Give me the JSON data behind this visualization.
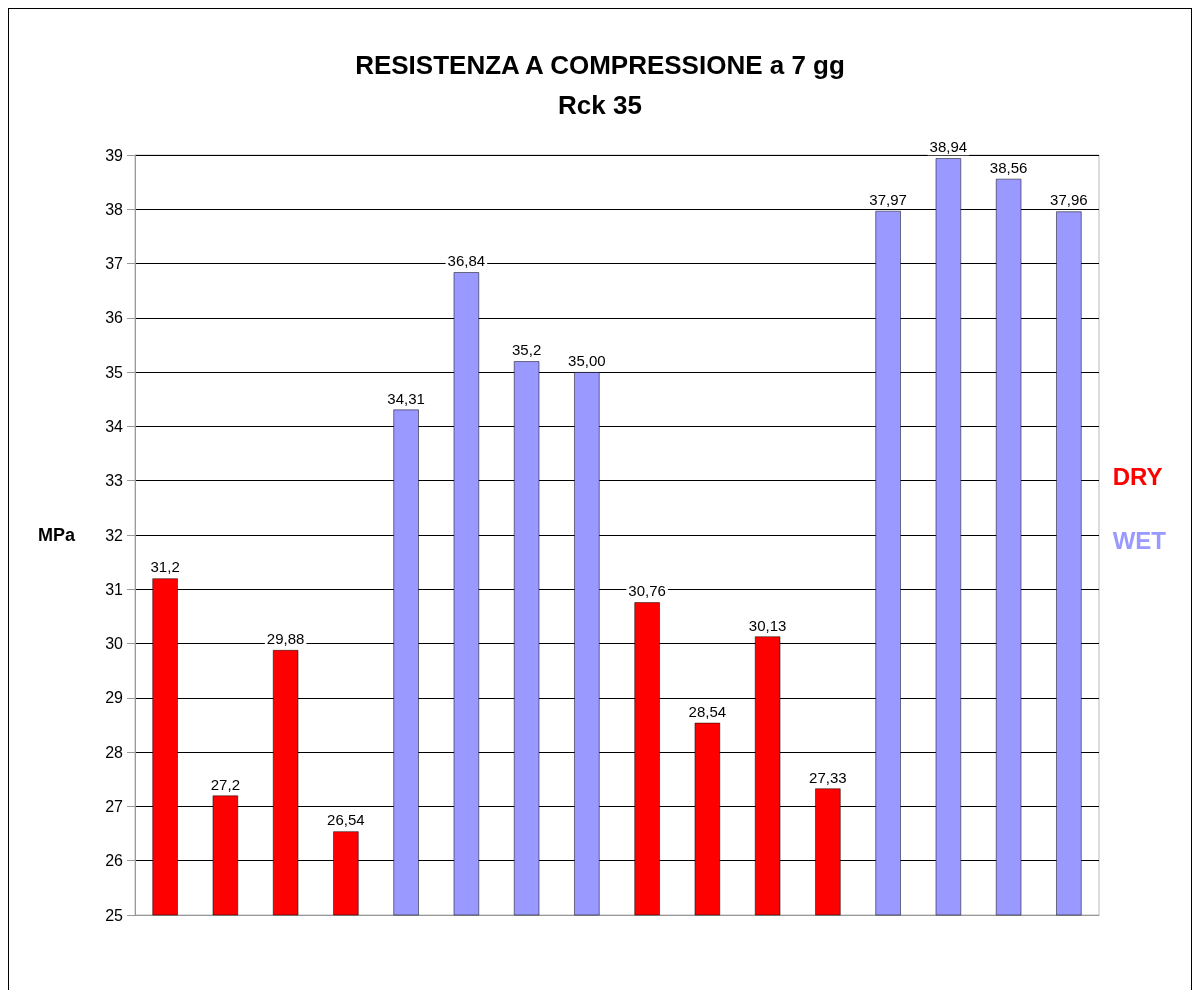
{
  "chart_data": {
    "type": "bar",
    "title": "RESISTENZA A COMPRESSIONE a 7 gg",
    "subtitle": "Rck 35",
    "ylabel": "MPa",
    "categories": [
      null,
      null,
      null,
      null,
      null,
      null,
      null,
      null,
      null,
      null,
      null,
      null,
      null,
      null,
      null,
      null
    ],
    "series": [
      {
        "name": "DRY",
        "color": "#ff0000",
        "values": [
          31.2,
          27.2,
          29.88,
          26.54,
          null,
          null,
          null,
          null,
          30.76,
          28.54,
          30.13,
          27.33,
          null,
          null,
          null,
          null
        ],
        "value_labels": [
          "31,2",
          "27,2",
          "29,88",
          "26,54",
          null,
          null,
          null,
          null,
          "30,76",
          "28,54",
          "30,13",
          "27,33",
          null,
          null,
          null,
          null
        ]
      },
      {
        "name": "WET",
        "color": "#9999ff",
        "values": [
          null,
          null,
          null,
          null,
          34.31,
          36.84,
          35.2,
          35.0,
          null,
          null,
          null,
          null,
          37.97,
          38.94,
          38.56,
          37.96
        ],
        "value_labels": [
          null,
          null,
          null,
          null,
          "34,31",
          "36,84",
          "35,2",
          "35,00",
          null,
          null,
          null,
          null,
          "37,97",
          "38,94",
          "38,56",
          "37,96"
        ]
      }
    ],
    "ylim": [
      25,
      39
    ],
    "yticks": [
      25,
      26,
      27,
      28,
      29,
      30,
      31,
      32,
      33,
      34,
      35,
      36,
      37,
      38,
      39
    ],
    "grid": "y",
    "legend": "right"
  }
}
